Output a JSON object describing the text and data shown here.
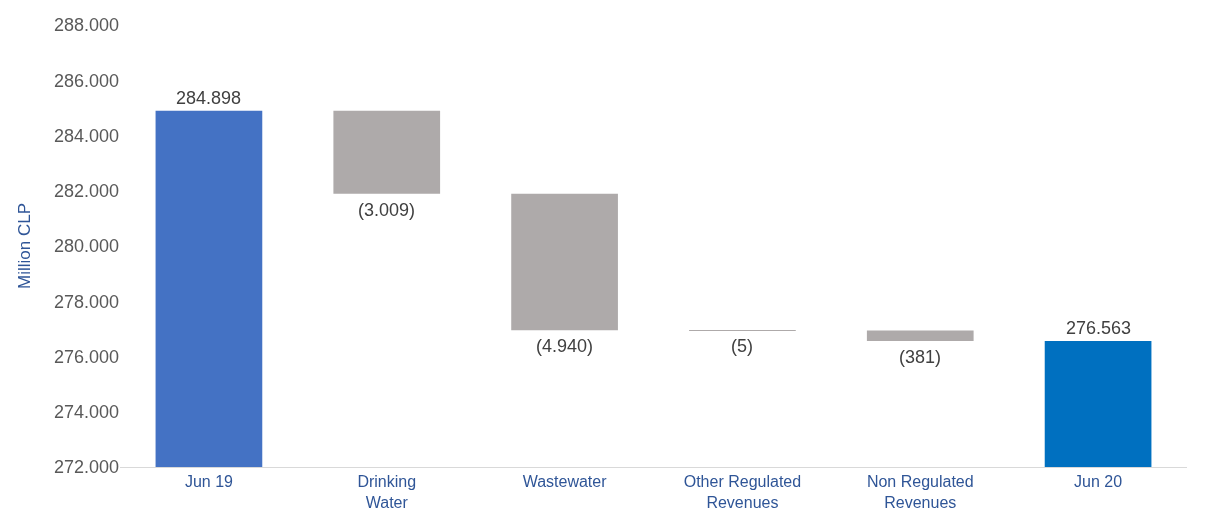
{
  "chart_data": {
    "type": "bar",
    "ylabel": "Million CLP",
    "categories": [
      "Jun 19",
      "Drinking Water",
      "Wastewater",
      "Other Regulated Revenues",
      "Non Regulated Revenues",
      "Jun 20"
    ],
    "values": [
      284898,
      -3009,
      -4940,
      -5,
      -381,
      276563
    ],
    "base": [
      0,
      284898,
      281889,
      276949,
      276944,
      0
    ],
    "colors": [
      "#4472c4",
      "#aeaaaa",
      "#aeaaaa",
      "#aeaaaa",
      "#aeaaaa",
      "#0070c0"
    ],
    "value_labels": [
      "284.898",
      "(3.009)",
      "(4.940)",
      "(5)",
      "(381)",
      "276.563"
    ],
    "ylim": [
      272000,
      288000
    ],
    "yticks": [
      {
        "value": 272000,
        "label": "272.000"
      },
      {
        "value": 274000,
        "label": "274.000"
      },
      {
        "value": 276000,
        "label": "276.000"
      },
      {
        "value": 278000,
        "label": "278.000"
      },
      {
        "value": 280000,
        "label": "280.000"
      },
      {
        "value": 282000,
        "label": "282.000"
      },
      {
        "value": 284000,
        "label": "284.000"
      },
      {
        "value": 286000,
        "label": "286.000"
      },
      {
        "value": 288000,
        "label": "288.000"
      }
    ],
    "grid": false
  }
}
